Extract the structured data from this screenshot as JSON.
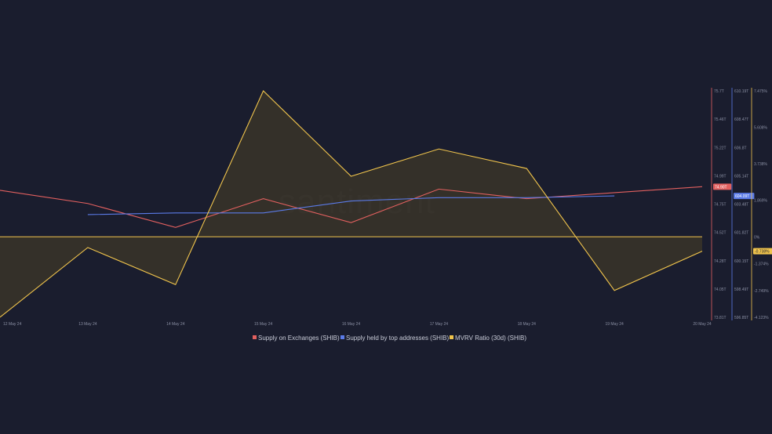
{
  "colors": {
    "background": "#1a1d2e",
    "exchanges": "#e2605f",
    "top_addresses": "#5b7be8",
    "mvrv": "#f0c44c",
    "mvrv_fill": "#3a3428",
    "axis_text": "#8a8fa3"
  },
  "watermark": "santiment",
  "chart_data": {
    "type": "line",
    "categories": [
      "12 May 24",
      "13 May 24",
      "14 May 24",
      "15 May 24",
      "16 May 24",
      "17 May 24",
      "18 May 24",
      "19 May 24",
      "20 May 24"
    ],
    "legend_position": "bottom-center",
    "grid": false,
    "series": [
      {
        "name": "Supply on Exchanges (SHIB)",
        "color": "#e2605f",
        "axis": "left",
        "values": [
          74.87,
          74.76,
          74.56,
          74.8,
          74.6,
          74.88,
          74.8,
          74.85,
          74.9
        ]
      },
      {
        "name": "Supply held by top addresses (SHIB)",
        "color": "#5b7be8",
        "axis": "middle",
        "values": [
          null,
          602.9,
          603.0,
          603.0,
          603.7,
          603.9,
          603.9,
          604.0,
          null
        ]
      },
      {
        "name": "MVRV Ratio (30d) (SHIB)",
        "color": "#f0c44c",
        "axis": "right",
        "values": [
          -4.123,
          -0.55,
          -2.45,
          7.475,
          3.1,
          4.5,
          3.5,
          -2.75,
          -0.738
        ]
      }
    ],
    "axes": {
      "left": {
        "ylim": [
          73.81,
          75.7
        ],
        "ticks": [
          "75.7T",
          "75.46T",
          "75.22T",
          "74.99T",
          "74.75T",
          "74.52T",
          "74.28T",
          "74.05T",
          "73.81T"
        ],
        "current_label": "74.90T"
      },
      "middle": {
        "ylim": [
          596.85,
          610.19
        ],
        "ticks": [
          "610.19T",
          "608.47T",
          "606.8T",
          "605.14T",
          "603.48T",
          "601.82T",
          "600.15T",
          "598.49T",
          "596.85T"
        ],
        "current_label": "604.09T"
      },
      "right": {
        "ylim": [
          -4.123,
          7.475
        ],
        "ticks": [
          "7.475%",
          "5.608%",
          "3.738%",
          "1.869%",
          "0%",
          "-1.374%",
          "-2.749%",
          "-4.123%"
        ],
        "current_label": "-0.738%"
      }
    }
  }
}
